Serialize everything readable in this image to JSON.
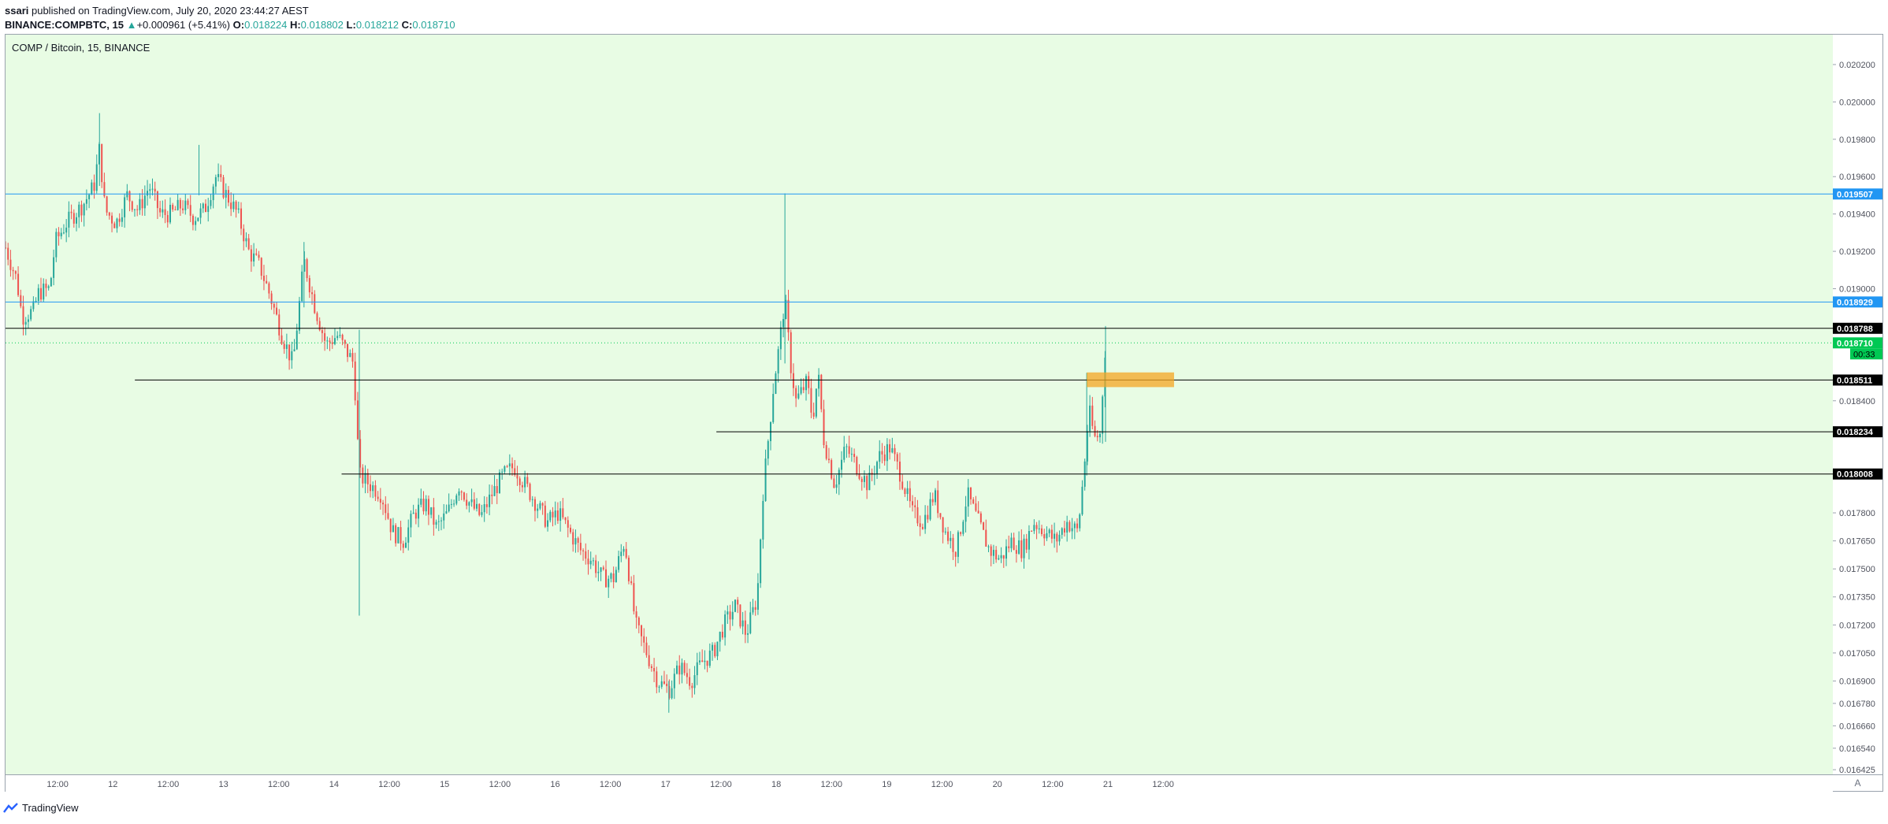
{
  "header": {
    "line1_user": "ssari",
    "line1_rest": " published on TradingView.com, July 20, 2020 23:44:27 AEST",
    "symbol": "BINANCE:COMPBTC, 15",
    "change_arrow": "▲",
    "change": "+0.000961 (+5.41%)",
    "o_label": "O:",
    "o_value": "0.018224",
    "h_label": "H:",
    "h_value": "0.018802",
    "l_label": "L:",
    "l_value": "0.018212",
    "c_label": "C:",
    "c_value": "0.018710"
  },
  "pane_title": "COMP / Bitcoin, 15, BINANCE",
  "corner_label": "A",
  "footer": {
    "brand": "TradingView"
  },
  "colors": {
    "background": "#e8fce4",
    "up": "#26a69a",
    "down": "#ef5350",
    "blue_line": "#2196f3",
    "black_line": "#000000",
    "highlight_box": "#f5a623"
  },
  "chart_data": {
    "type": "candlestick",
    "ylim": [
      0.0164,
      0.02036
    ],
    "y_ticks": [
      0.0202,
      0.02,
      0.0198,
      0.0196,
      0.0194,
      0.0192,
      0.019,
      0.0184,
      0.0178,
      0.01765,
      0.0175,
      0.01735,
      0.0172,
      0.01705,
      0.0169,
      0.01678,
      0.01666,
      0.01654,
      0.016425
    ],
    "y_tick_labels": [
      "0.020200",
      "0.020000",
      "0.019800",
      "0.019600",
      "0.019400",
      "0.019200",
      "0.019000",
      "0.018400",
      "0.017800",
      "0.017650",
      "0.017500",
      "0.017350",
      "0.017200",
      "0.017050",
      "0.016900",
      "0.016780",
      "0.016660",
      "0.016540",
      "0.016425"
    ],
    "x_tick_labels": [
      "12:00",
      "12",
      "12:00",
      "13",
      "12:00",
      "14",
      "12:00",
      "15",
      "12:00",
      "16",
      "12:00",
      "17",
      "12:00",
      "18",
      "12:00",
      "19",
      "12:00",
      "20",
      "12:00",
      "21",
      "12:00"
    ],
    "x_tick_index": [
      0.5,
      1,
      1.5,
      2,
      2.5,
      3,
      3.5,
      4,
      4.5,
      5,
      5.5,
      6,
      6.5,
      7,
      7.5,
      8,
      8.5,
      9,
      9.5,
      10,
      10.5
    ],
    "price_path": [
      [
        0.0,
        0.01922
      ],
      [
        0.1,
        0.01905
      ],
      [
        0.15,
        0.01885
      ],
      [
        0.25,
        0.01888
      ],
      [
        0.3,
        0.01898
      ],
      [
        0.4,
        0.019
      ],
      [
        0.45,
        0.01925
      ],
      [
        0.55,
        0.01935
      ],
      [
        0.7,
        0.01945
      ],
      [
        0.8,
        0.01955
      ],
      [
        0.85,
        0.01975
      ],
      [
        0.9,
        0.01942
      ],
      [
        1.0,
        0.01935
      ],
      [
        1.1,
        0.0195
      ],
      [
        1.2,
        0.01942
      ],
      [
        1.3,
        0.01955
      ],
      [
        1.4,
        0.0194
      ],
      [
        1.5,
        0.0194
      ],
      [
        1.6,
        0.01945
      ],
      [
        1.7,
        0.01938
      ],
      [
        1.8,
        0.01942
      ],
      [
        1.9,
        0.0196
      ],
      [
        2.0,
        0.0195
      ],
      [
        2.1,
        0.0194
      ],
      [
        2.2,
        0.0192
      ],
      [
        2.3,
        0.01912
      ],
      [
        2.4,
        0.01895
      ],
      [
        2.5,
        0.01875
      ],
      [
        2.6,
        0.0186
      ],
      [
        2.7,
        0.01915
      ],
      [
        2.8,
        0.0189
      ],
      [
        2.9,
        0.0187
      ],
      [
        3.0,
        0.01875
      ],
      [
        3.15,
        0.0186
      ],
      [
        3.2,
        0.018
      ],
      [
        3.3,
        0.01795
      ],
      [
        3.4,
        0.0179
      ],
      [
        3.5,
        0.0177
      ],
      [
        3.6,
        0.01765
      ],
      [
        3.7,
        0.0178
      ],
      [
        3.8,
        0.01785
      ],
      [
        3.9,
        0.01772
      ],
      [
        4.0,
        0.0178
      ],
      [
        4.1,
        0.01795
      ],
      [
        4.2,
        0.01785
      ],
      [
        4.3,
        0.01778
      ],
      [
        4.4,
        0.0179
      ],
      [
        4.5,
        0.018
      ],
      [
        4.6,
        0.01805
      ],
      [
        4.7,
        0.01795
      ],
      [
        4.8,
        0.01785
      ],
      [
        4.9,
        0.01775
      ],
      [
        5.0,
        0.0178
      ],
      [
        5.1,
        0.0177
      ],
      [
        5.2,
        0.0176
      ],
      [
        5.3,
        0.01755
      ],
      [
        5.4,
        0.01745
      ],
      [
        5.5,
        0.01745
      ],
      [
        5.6,
        0.01765
      ],
      [
        5.7,
        0.0172
      ],
      [
        5.8,
        0.01705
      ],
      [
        5.9,
        0.0169
      ],
      [
        6.0,
        0.01685
      ],
      [
        6.1,
        0.01698
      ],
      [
        6.2,
        0.0169
      ],
      [
        6.3,
        0.017
      ],
      [
        6.4,
        0.01705
      ],
      [
        6.5,
        0.0172
      ],
      [
        6.6,
        0.0173
      ],
      [
        6.7,
        0.01715
      ],
      [
        6.8,
        0.01735
      ],
      [
        6.85,
        0.0179
      ],
      [
        6.9,
        0.0182
      ],
      [
        6.95,
        0.0185
      ],
      [
        7.0,
        0.0187
      ],
      [
        7.05,
        0.01895
      ],
      [
        7.1,
        0.0186
      ],
      [
        7.15,
        0.0184
      ],
      [
        7.25,
        0.0185
      ],
      [
        7.3,
        0.0183
      ],
      [
        7.35,
        0.01855
      ],
      [
        7.4,
        0.0182
      ],
      [
        7.5,
        0.01795
      ],
      [
        7.6,
        0.01815
      ],
      [
        7.7,
        0.01805
      ],
      [
        7.8,
        0.01795
      ],
      [
        7.9,
        0.0181
      ],
      [
        8.0,
        0.01815
      ],
      [
        8.1,
        0.018
      ],
      [
        8.2,
        0.0178
      ],
      [
        8.3,
        0.01775
      ],
      [
        8.4,
        0.0179
      ],
      [
        8.5,
        0.0177
      ],
      [
        8.6,
        0.0176
      ],
      [
        8.7,
        0.0179
      ],
      [
        8.8,
        0.01775
      ],
      [
        8.9,
        0.0176
      ],
      [
        9.0,
        0.01755
      ],
      [
        9.1,
        0.01765
      ],
      [
        9.2,
        0.0176
      ],
      [
        9.3,
        0.01775
      ],
      [
        9.4,
        0.0177
      ],
      [
        9.5,
        0.01765
      ],
      [
        9.6,
        0.01775
      ],
      [
        9.7,
        0.0177
      ],
      [
        9.75,
        0.018
      ],
      [
        9.8,
        0.01835
      ],
      [
        9.85,
        0.0182
      ],
      [
        9.9,
        0.01822
      ],
      [
        9.95,
        0.01871
      ]
    ],
    "spikes": [
      {
        "x": 0.85,
        "high": 0.01994,
        "low": 0.01955
      },
      {
        "x": 1.75,
        "high": 0.01977,
        "low": 0.0195
      },
      {
        "x": 2.7,
        "high": 0.01925,
        "low": 0.0189
      },
      {
        "x": 3.2,
        "high": 0.01878,
        "low": 0.01725
      },
      {
        "x": 3.2,
        "high": 0.018,
        "low": 0.01725
      },
      {
        "x": 6.0,
        "high": 0.0169,
        "low": 0.01673
      },
      {
        "x": 7.05,
        "high": 0.01951,
        "low": 0.0186
      },
      {
        "x": 9.78,
        "high": 0.01855,
        "low": 0.018
      },
      {
        "x": 9.95,
        "high": 0.0188,
        "low": 0.01818
      }
    ],
    "horizontal_levels": [
      {
        "price": 0.019507,
        "label": "0.019507",
        "color": "#2196f3",
        "from": 0.0
      },
      {
        "price": 0.018929,
        "label": "0.018929",
        "color": "#2196f3",
        "from": 0.0
      },
      {
        "price": 0.018788,
        "label": "0.018788",
        "color": "#000000",
        "from": 0.0
      },
      {
        "price": 0.018511,
        "label": "0.018511",
        "color": "#000000",
        "from": 1.17
      },
      {
        "price": 0.018234,
        "label": "0.018234",
        "color": "#000000",
        "from": 6.43
      },
      {
        "price": 0.018008,
        "label": "0.018008",
        "color": "#000000",
        "from": 3.04
      }
    ],
    "last_price": {
      "price": 0.01871,
      "label": "0.018710",
      "countdown": "00:33",
      "color": "#00c853"
    },
    "highlight_zone": {
      "x_from": 9.78,
      "x_to": 10.57,
      "price_top": 0.018535,
      "price_bottom": 0.01849
    }
  }
}
